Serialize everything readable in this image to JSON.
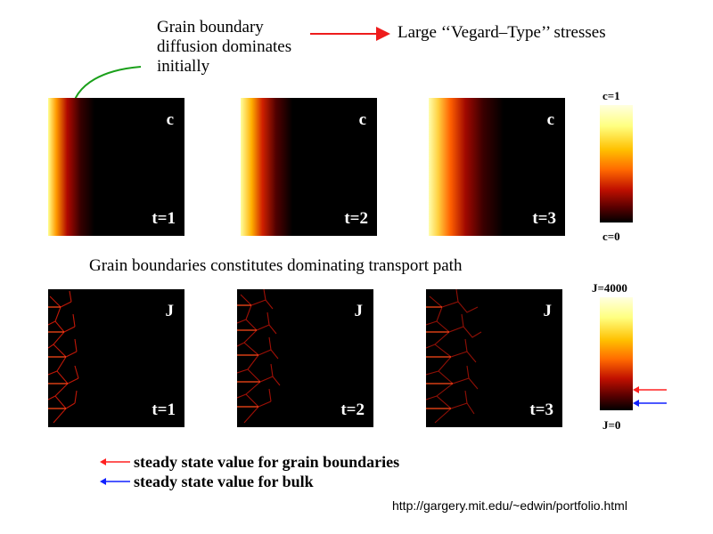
{
  "annotations": {
    "grain_boundary": [
      "Grain boundary",
      "diffusion dominates",
      "initially"
    ],
    "vegard": "Large ‘‘Vegard–Type’’ stresses",
    "section_caption": "Grain boundaries constitutes dominating transport path"
  },
  "row_c": {
    "variable": "c",
    "panels": [
      {
        "time": "t=1"
      },
      {
        "time": "t=2"
      },
      {
        "time": "t=3"
      }
    ],
    "colorbar": {
      "top": "c=1",
      "bottom": "c=0"
    }
  },
  "row_j": {
    "variable": "J",
    "panels": [
      {
        "time": "t=1"
      },
      {
        "time": "t=2"
      },
      {
        "time": "t=3"
      }
    ],
    "colorbar": {
      "top": "J=4000",
      "bottom": "J=0"
    }
  },
  "legend": [
    {
      "text": "steady state value for grain boundaries",
      "color": "#ff2020"
    },
    {
      "text": "steady state value for bulk",
      "color": "#1020ff"
    }
  ],
  "source_url": "http://gargery.mit.edu/~edwin/portfolio.html",
  "colors": {
    "annotation_arrow_green": "#1aa01a",
    "annotation_arrow_red": "#ee1c1c",
    "colormap": [
      "#000000",
      "#5a0000",
      "#c01000",
      "#ff6a00",
      "#ffc000",
      "#ffff80",
      "#ffffe0"
    ]
  }
}
